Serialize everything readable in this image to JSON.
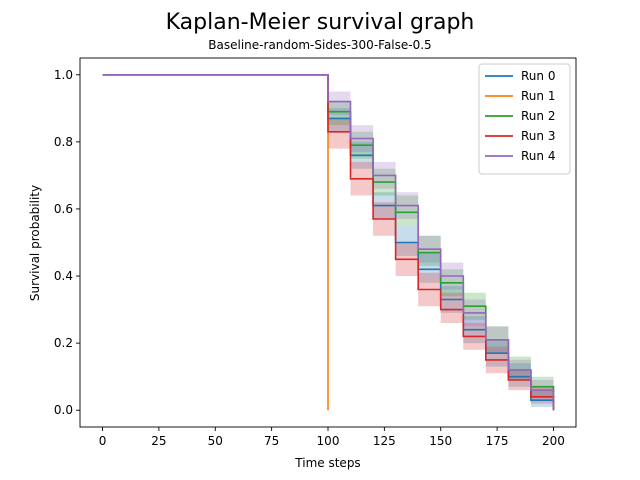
{
  "chart_data": {
    "type": "line",
    "title": "Kaplan-Meier survival graph",
    "subtitle": "Baseline-random-Sides-300-False-0.5",
    "xlabel": "Time steps",
    "ylabel": "Survival probability",
    "xlim": [
      -10,
      210
    ],
    "ylim": [
      -0.05,
      1.05
    ],
    "xticks": [
      0,
      25,
      50,
      75,
      100,
      125,
      150,
      175,
      200
    ],
    "yticks": [
      0.0,
      0.2,
      0.4,
      0.6,
      0.8,
      1.0
    ],
    "grid": false,
    "legend_position": "upper-right",
    "series": [
      {
        "name": "Run 0",
        "color": "#1f77b4",
        "steps": [
          [
            0,
            1.0
          ],
          [
            100,
            0.87
          ],
          [
            110,
            0.76
          ],
          [
            120,
            0.61
          ],
          [
            130,
            0.5
          ],
          [
            140,
            0.42
          ],
          [
            150,
            0.33
          ],
          [
            160,
            0.24
          ],
          [
            170,
            0.17
          ],
          [
            180,
            0.1
          ],
          [
            190,
            0.03
          ],
          [
            200,
            0.0
          ]
        ],
        "ci_lower": [
          1.0,
          0.83,
          0.72,
          0.57,
          0.46,
          0.38,
          0.29,
          0.2,
          0.13,
          0.07,
          0.01,
          0.0
        ],
        "ci_upper": [
          1.0,
          0.9,
          0.8,
          0.65,
          0.55,
          0.47,
          0.37,
          0.28,
          0.21,
          0.14,
          0.06,
          0.0
        ]
      },
      {
        "name": "Run 1",
        "color": "#ff7f0e",
        "steps": [
          [
            0,
            1.0
          ],
          [
            100,
            0.0
          ]
        ],
        "ci_lower": [
          1.0,
          0.0
        ],
        "ci_upper": [
          1.0,
          0.0
        ]
      },
      {
        "name": "Run 2",
        "color": "#2ca02c",
        "steps": [
          [
            0,
            1.0
          ],
          [
            100,
            0.89
          ],
          [
            110,
            0.79
          ],
          [
            120,
            0.68
          ],
          [
            130,
            0.59
          ],
          [
            140,
            0.47
          ],
          [
            150,
            0.38
          ],
          [
            160,
            0.31
          ],
          [
            170,
            0.21
          ],
          [
            180,
            0.12
          ],
          [
            190,
            0.07
          ],
          [
            200,
            0.0
          ]
        ],
        "ci_lower": [
          1.0,
          0.85,
          0.75,
          0.64,
          0.55,
          0.43,
          0.34,
          0.27,
          0.17,
          0.09,
          0.04,
          0.0
        ],
        "ci_upper": [
          1.0,
          0.92,
          0.83,
          0.72,
          0.64,
          0.52,
          0.42,
          0.35,
          0.25,
          0.16,
          0.1,
          0.0
        ]
      },
      {
        "name": "Run 3",
        "color": "#d62728",
        "steps": [
          [
            0,
            1.0
          ],
          [
            100,
            0.83
          ],
          [
            110,
            0.69
          ],
          [
            120,
            0.57
          ],
          [
            130,
            0.45
          ],
          [
            140,
            0.36
          ],
          [
            150,
            0.3
          ],
          [
            160,
            0.22
          ],
          [
            170,
            0.15
          ],
          [
            180,
            0.09
          ],
          [
            190,
            0.04
          ],
          [
            200,
            0.0
          ]
        ],
        "ci_lower": [
          1.0,
          0.78,
          0.64,
          0.52,
          0.4,
          0.31,
          0.26,
          0.18,
          0.11,
          0.06,
          0.02,
          0.0
        ],
        "ci_upper": [
          1.0,
          0.87,
          0.74,
          0.62,
          0.5,
          0.41,
          0.35,
          0.26,
          0.19,
          0.12,
          0.07,
          0.0
        ]
      },
      {
        "name": "Run 4",
        "color": "#9467bd",
        "steps": [
          [
            0,
            1.0
          ],
          [
            100,
            0.92
          ],
          [
            110,
            0.81
          ],
          [
            120,
            0.7
          ],
          [
            130,
            0.61
          ],
          [
            140,
            0.48
          ],
          [
            150,
            0.4
          ],
          [
            160,
            0.29
          ],
          [
            170,
            0.21
          ],
          [
            180,
            0.12
          ],
          [
            190,
            0.06
          ],
          [
            200,
            0.0
          ]
        ],
        "ci_lower": [
          1.0,
          0.88,
          0.77,
          0.66,
          0.57,
          0.44,
          0.36,
          0.25,
          0.17,
          0.09,
          0.03,
          0.0
        ],
        "ci_upper": [
          1.0,
          0.95,
          0.85,
          0.74,
          0.65,
          0.52,
          0.44,
          0.33,
          0.25,
          0.15,
          0.09,
          0.0
        ]
      }
    ]
  }
}
